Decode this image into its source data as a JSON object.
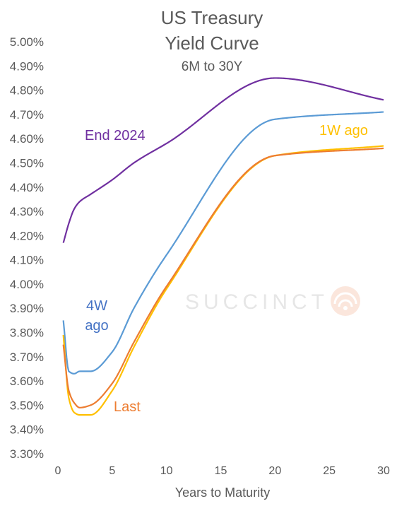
{
  "chart_data": {
    "type": "line",
    "title": [
      "US Treasury",
      "Yield Curve"
    ],
    "subtitle": "6M to 30Y",
    "xlabel": "Years to Maturity",
    "ylabel": "",
    "xlim": [
      0,
      30
    ],
    "ylim": [
      3.3,
      5.0
    ],
    "x_ticks": [
      0,
      5,
      10,
      15,
      20,
      25,
      30
    ],
    "y_ticks": [
      3.3,
      3.4,
      3.5,
      3.6,
      3.7,
      3.8,
      3.9,
      4.0,
      4.1,
      4.2,
      4.3,
      4.4,
      4.5,
      4.6,
      4.7,
      4.8,
      4.9,
      5.0
    ],
    "y_tick_labels": [
      "3.30%",
      "3.40%",
      "3.50%",
      "3.60%",
      "3.70%",
      "3.80%",
      "3.90%",
      "4.00%",
      "4.10%",
      "4.20%",
      "4.30%",
      "4.40%",
      "4.50%",
      "4.60%",
      "4.70%",
      "4.80%",
      "4.90%",
      "5.00%"
    ],
    "grid": false,
    "legend": "none",
    "series": [
      {
        "name": "End 2024",
        "color": "#7030a0",
        "x": [
          0.5,
          1,
          1.5,
          2,
          3,
          5,
          7,
          10,
          20,
          30
        ],
        "y": [
          4.17,
          4.25,
          4.31,
          4.34,
          4.37,
          4.43,
          4.5,
          4.58,
          4.85,
          4.76
        ]
      },
      {
        "name": "4W ago",
        "color": "#5b9bd5",
        "x": [
          0.5,
          1,
          1.5,
          2,
          3,
          5,
          7,
          10,
          20,
          30
        ],
        "y": [
          3.85,
          3.64,
          3.63,
          3.64,
          3.64,
          3.72,
          3.9,
          4.12,
          4.68,
          4.71
        ]
      },
      {
        "name": "1W ago",
        "color": "#ffc000",
        "x": [
          0.5,
          1,
          1.5,
          2,
          3,
          5,
          7,
          10,
          20,
          30
        ],
        "y": [
          3.79,
          3.53,
          3.47,
          3.46,
          3.46,
          3.56,
          3.74,
          3.98,
          4.53,
          4.57
        ]
      },
      {
        "name": "Last",
        "color": "#ed7d31",
        "x": [
          0.5,
          1,
          1.5,
          2,
          3,
          5,
          7,
          10,
          20,
          30
        ],
        "y": [
          3.75,
          3.56,
          3.51,
          3.49,
          3.5,
          3.59,
          3.76,
          3.99,
          4.53,
          4.56
        ]
      }
    ],
    "watermark": "SUCCINCT"
  }
}
